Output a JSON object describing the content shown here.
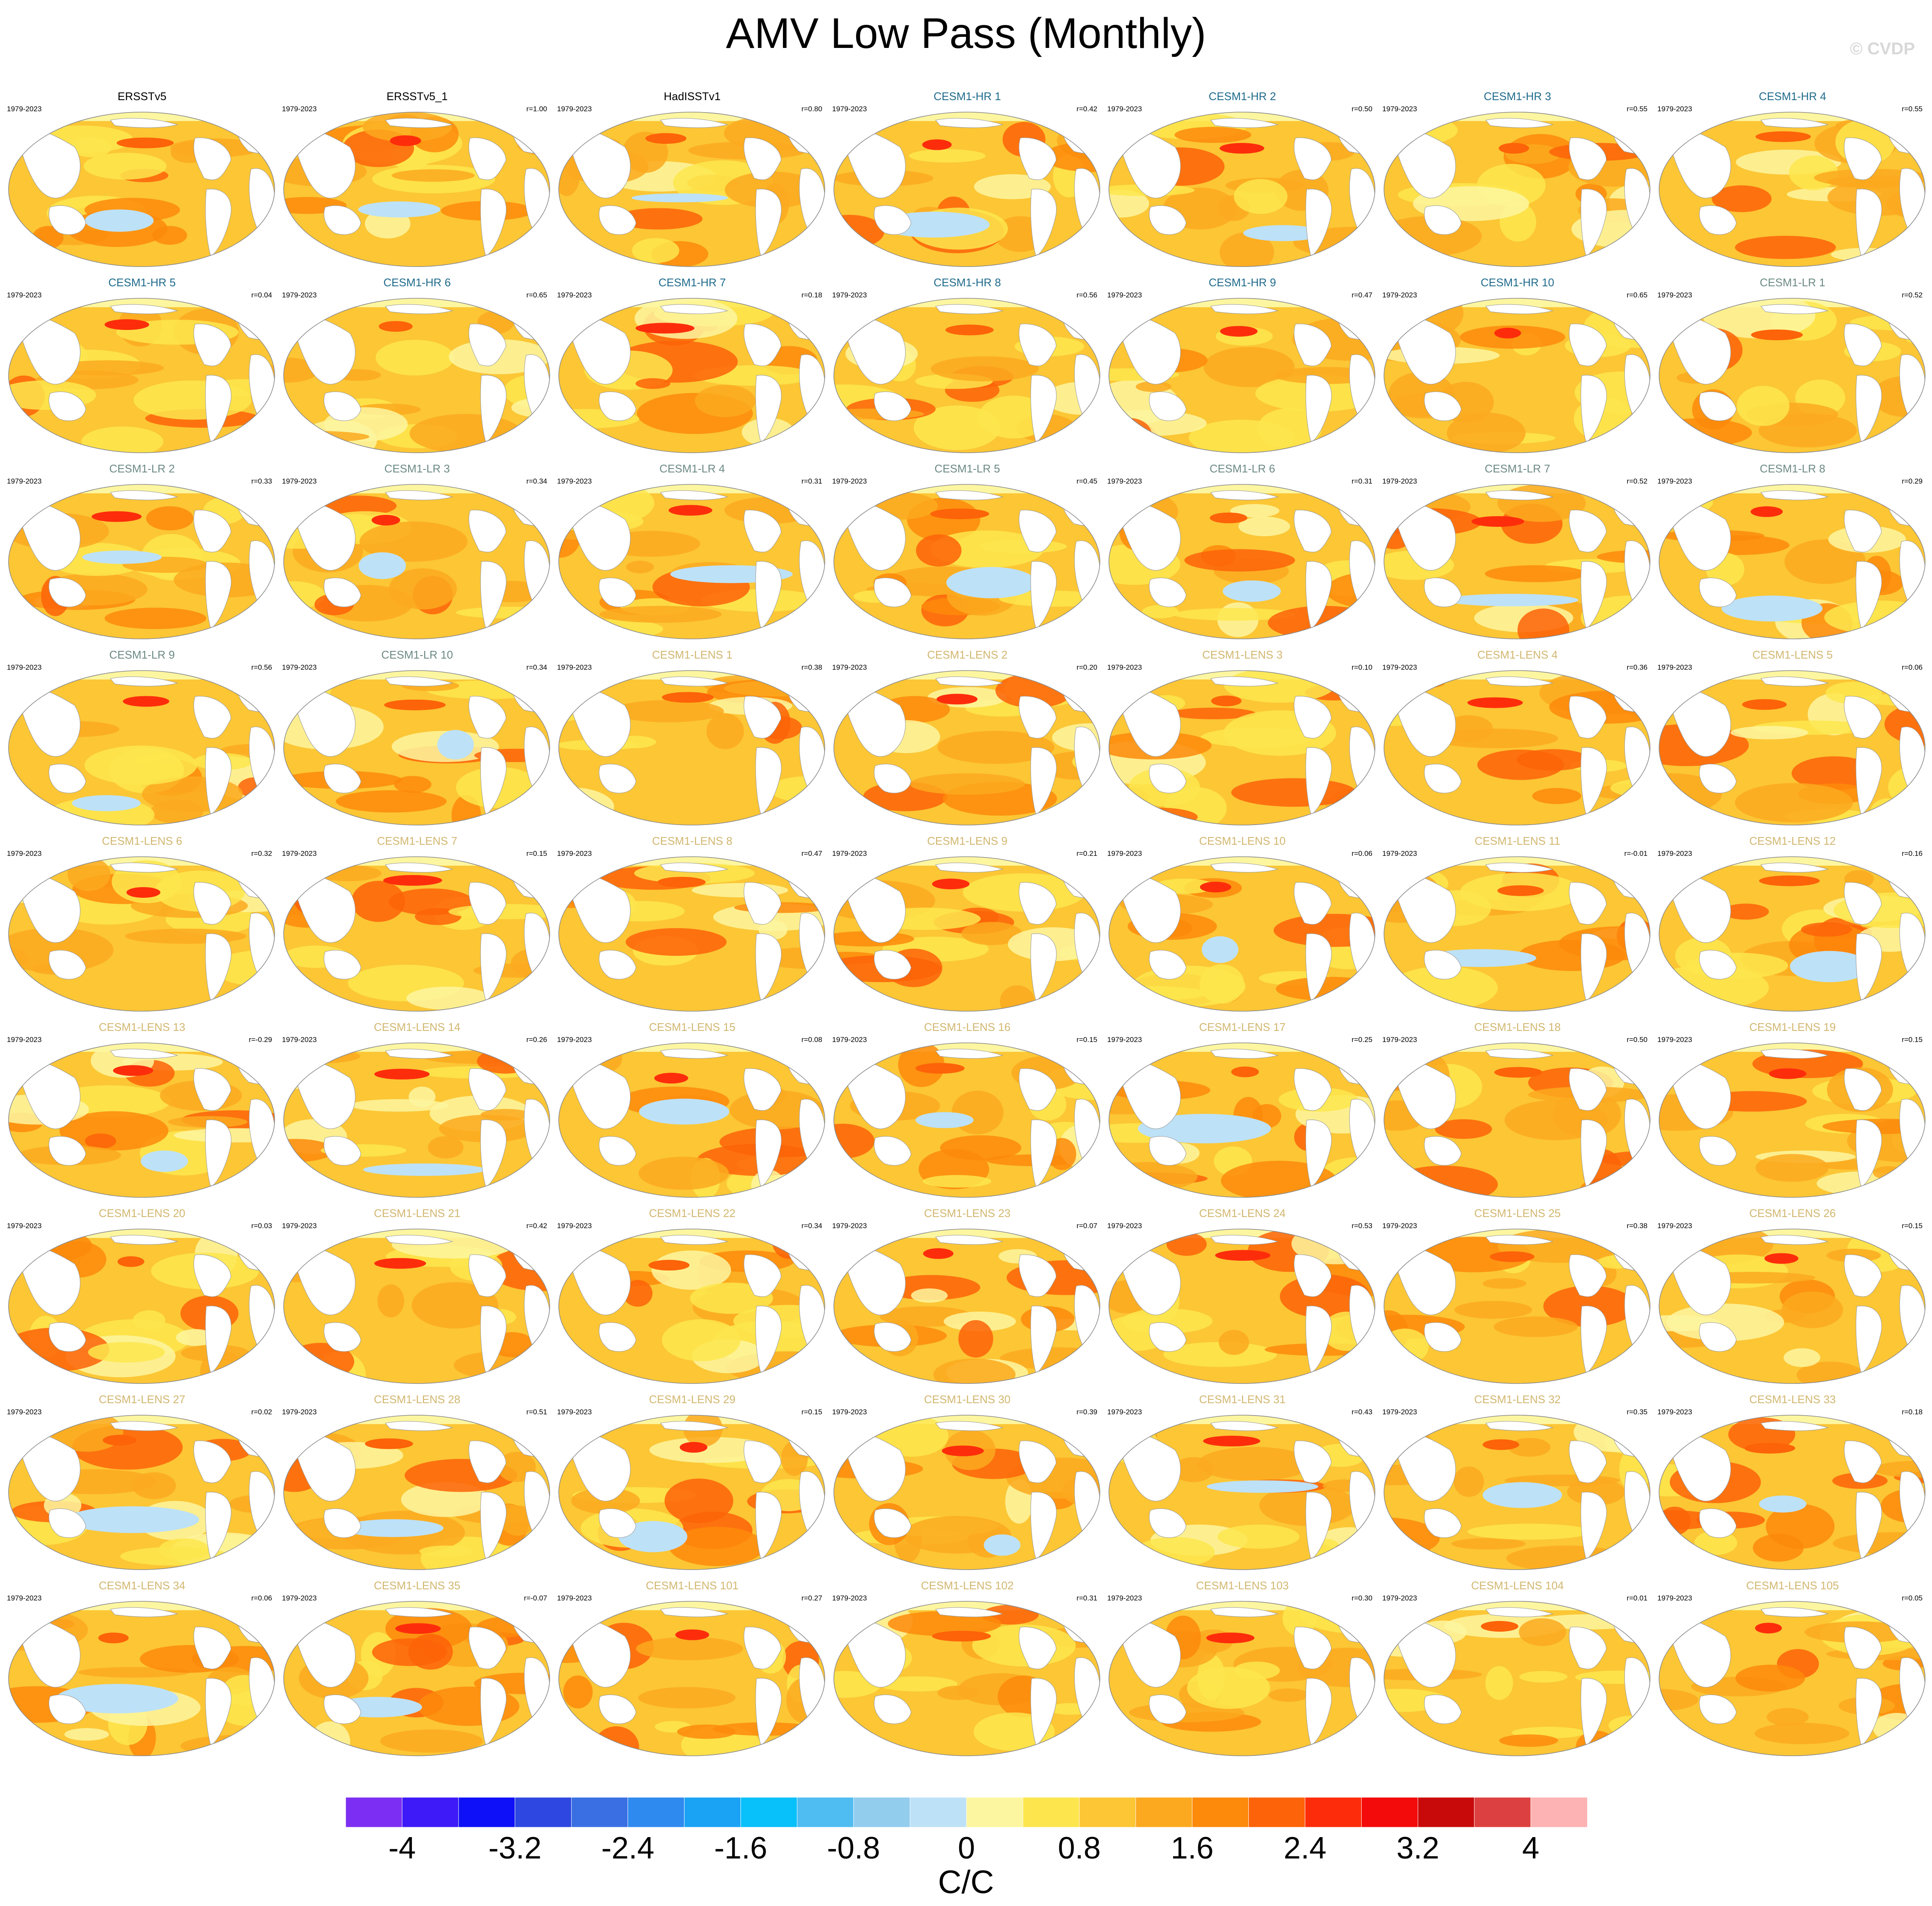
{
  "chart_data": {
    "type": "heatmap",
    "title": "AMV Low Pass (Monthly)",
    "copyright": "© CVDP",
    "period": "1979-2023",
    "panels": [
      {
        "name": "ERSSTv5",
        "r": "",
        "group": "obs"
      },
      {
        "name": "ERSSTv5_1",
        "r": "r=1.00",
        "group": "obs"
      },
      {
        "name": "HadISSTv1",
        "r": "r=0.80",
        "group": "obs"
      },
      {
        "name": "CESM1-HR 1",
        "r": "r=0.42",
        "group": "hr"
      },
      {
        "name": "CESM1-HR 2",
        "r": "r=0.50",
        "group": "hr"
      },
      {
        "name": "CESM1-HR 3",
        "r": "r=0.55",
        "group": "hr"
      },
      {
        "name": "CESM1-HR 4",
        "r": "r=0.55",
        "group": "hr"
      },
      {
        "name": "CESM1-HR 5",
        "r": "r=0.04",
        "group": "hr"
      },
      {
        "name": "CESM1-HR 6",
        "r": "r=0.65",
        "group": "hr"
      },
      {
        "name": "CESM1-HR 7",
        "r": "r=0.18",
        "group": "hr"
      },
      {
        "name": "CESM1-HR 8",
        "r": "r=0.56",
        "group": "hr"
      },
      {
        "name": "CESM1-HR 9",
        "r": "r=0.47",
        "group": "hr"
      },
      {
        "name": "CESM1-HR 10",
        "r": "r=0.65",
        "group": "hr"
      },
      {
        "name": "CESM1-LR 1",
        "r": "r=0.52",
        "group": "lr"
      },
      {
        "name": "CESM1-LR 2",
        "r": "r=0.33",
        "group": "lr"
      },
      {
        "name": "CESM1-LR 3",
        "r": "r=0.34",
        "group": "lr"
      },
      {
        "name": "CESM1-LR 4",
        "r": "r=0.31",
        "group": "lr"
      },
      {
        "name": "CESM1-LR 5",
        "r": "r=0.45",
        "group": "lr"
      },
      {
        "name": "CESM1-LR 6",
        "r": "r=0.31",
        "group": "lr"
      },
      {
        "name": "CESM1-LR 7",
        "r": "r=0.52",
        "group": "lr"
      },
      {
        "name": "CESM1-LR 8",
        "r": "r=0.29",
        "group": "lr"
      },
      {
        "name": "CESM1-LR 9",
        "r": "r=0.56",
        "group": "lr"
      },
      {
        "name": "CESM1-LR 10",
        "r": "r=0.34",
        "group": "lr"
      },
      {
        "name": "CESM1-LENS 1",
        "r": "r=0.38",
        "group": "lens"
      },
      {
        "name": "CESM1-LENS 2",
        "r": "r=0.20",
        "group": "lens"
      },
      {
        "name": "CESM1-LENS 3",
        "r": "r=0.10",
        "group": "lens"
      },
      {
        "name": "CESM1-LENS 4",
        "r": "r=0.36",
        "group": "lens"
      },
      {
        "name": "CESM1-LENS 5",
        "r": "r=0.06",
        "group": "lens"
      },
      {
        "name": "CESM1-LENS 6",
        "r": "r=0.32",
        "group": "lens"
      },
      {
        "name": "CESM1-LENS 7",
        "r": "r=0.15",
        "group": "lens"
      },
      {
        "name": "CESM1-LENS 8",
        "r": "r=0.47",
        "group": "lens"
      },
      {
        "name": "CESM1-LENS 9",
        "r": "r=0.21",
        "group": "lens"
      },
      {
        "name": "CESM1-LENS 10",
        "r": "r=0.06",
        "group": "lens"
      },
      {
        "name": "CESM1-LENS 11",
        "r": "r=-0.01",
        "group": "lens"
      },
      {
        "name": "CESM1-LENS 12",
        "r": "r=0.16",
        "group": "lens"
      },
      {
        "name": "CESM1-LENS 13",
        "r": "r=-0.29",
        "group": "lens"
      },
      {
        "name": "CESM1-LENS 14",
        "r": "r=0.26",
        "group": "lens"
      },
      {
        "name": "CESM1-LENS 15",
        "r": "r=0.08",
        "group": "lens"
      },
      {
        "name": "CESM1-LENS 16",
        "r": "r=0.15",
        "group": "lens"
      },
      {
        "name": "CESM1-LENS 17",
        "r": "r=0.25",
        "group": "lens"
      },
      {
        "name": "CESM1-LENS 18",
        "r": "r=0.50",
        "group": "lens"
      },
      {
        "name": "CESM1-LENS 19",
        "r": "r=0.15",
        "group": "lens"
      },
      {
        "name": "CESM1-LENS 20",
        "r": "r=0.03",
        "group": "lens"
      },
      {
        "name": "CESM1-LENS 21",
        "r": "r=0.42",
        "group": "lens"
      },
      {
        "name": "CESM1-LENS 22",
        "r": "r=0.34",
        "group": "lens"
      },
      {
        "name": "CESM1-LENS 23",
        "r": "r=0.07",
        "group": "lens"
      },
      {
        "name": "CESM1-LENS 24",
        "r": "r=0.53",
        "group": "lens"
      },
      {
        "name": "CESM1-LENS 25",
        "r": "r=0.38",
        "group": "lens"
      },
      {
        "name": "CESM1-LENS 26",
        "r": "r=0.15",
        "group": "lens"
      },
      {
        "name": "CESM1-LENS 27",
        "r": "r=0.02",
        "group": "lens"
      },
      {
        "name": "CESM1-LENS 28",
        "r": "r=0.51",
        "group": "lens"
      },
      {
        "name": "CESM1-LENS 29",
        "r": "r=0.15",
        "group": "lens"
      },
      {
        "name": "CESM1-LENS 30",
        "r": "r=0.39",
        "group": "lens"
      },
      {
        "name": "CESM1-LENS 31",
        "r": "r=0.43",
        "group": "lens"
      },
      {
        "name": "CESM1-LENS 32",
        "r": "r=0.35",
        "group": "lens"
      },
      {
        "name": "CESM1-LENS 33",
        "r": "r=0.18",
        "group": "lens"
      },
      {
        "name": "CESM1-LENS 34",
        "r": "r=0.06",
        "group": "lens"
      },
      {
        "name": "CESM1-LENS 35",
        "r": "r=-0.07",
        "group": "lens"
      },
      {
        "name": "CESM1-LENS 101",
        "r": "r=0.27",
        "group": "lens"
      },
      {
        "name": "CESM1-LENS 102",
        "r": "r=0.31",
        "group": "lens"
      },
      {
        "name": "CESM1-LENS 103",
        "r": "r=0.30",
        "group": "lens"
      },
      {
        "name": "CESM1-LENS 104",
        "r": "r=0.01",
        "group": "lens"
      },
      {
        "name": "CESM1-LENS 105",
        "r": "r=0.05",
        "group": "lens"
      }
    ],
    "group_colors": {
      "obs": "#000000",
      "hr": "#1f6b8c",
      "lr": "#6c8a84",
      "lens": "#d2b770"
    },
    "colorbar": {
      "units": "C/C",
      "colors": [
        "#7c2ff2",
        "#3d1af7",
        "#0e10f7",
        "#2d47e0",
        "#3a6fe3",
        "#2f8aef",
        "#1aa3f5",
        "#08c0fa",
        "#4fbdf2",
        "#92cdee",
        "#bde1f7",
        "#fdf6a0",
        "#fde64d",
        "#fcc635",
        "#fca91f",
        "#fd8a0b",
        "#fd6308",
        "#fd2d0b",
        "#f30a0a",
        "#c80a0a",
        "#dd4040",
        "#fdb3b3"
      ],
      "tick_labels": [
        "-4",
        "-3.2",
        "-2.4",
        "-1.6",
        "-0.8",
        "0",
        "0.8",
        "1.6",
        "2.4",
        "3.2",
        "4"
      ]
    }
  }
}
